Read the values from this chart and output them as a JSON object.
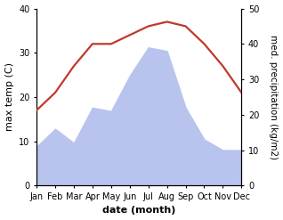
{
  "months": [
    "Jan",
    "Feb",
    "Mar",
    "Apr",
    "May",
    "Jun",
    "Jul",
    "Aug",
    "Sep",
    "Oct",
    "Nov",
    "Dec"
  ],
  "temperature": [
    17,
    21,
    27,
    32,
    32,
    34,
    36,
    37,
    36,
    32,
    27,
    21
  ],
  "precipitation": [
    11,
    16,
    12,
    22,
    21,
    31,
    39,
    38,
    22,
    13,
    10,
    10
  ],
  "temp_color": "#c0392b",
  "precip_color": "#b8c4ee",
  "temp_ylim": [
    0,
    40
  ],
  "precip_ylim": [
    0,
    50
  ],
  "temp_yticks": [
    0,
    10,
    20,
    30,
    40
  ],
  "precip_yticks": [
    0,
    10,
    20,
    30,
    40,
    50
  ],
  "xlabel": "date (month)",
  "ylabel_left": "max temp (C)",
  "ylabel_right": "med. precipitation (kg/m2)",
  "background_color": "#ffffff",
  "xlabel_fontsize": 8,
  "ylabel_fontsize": 8,
  "tick_fontsize": 7,
  "line_width": 1.6,
  "figwidth": 3.18,
  "figheight": 2.47,
  "dpi": 100
}
